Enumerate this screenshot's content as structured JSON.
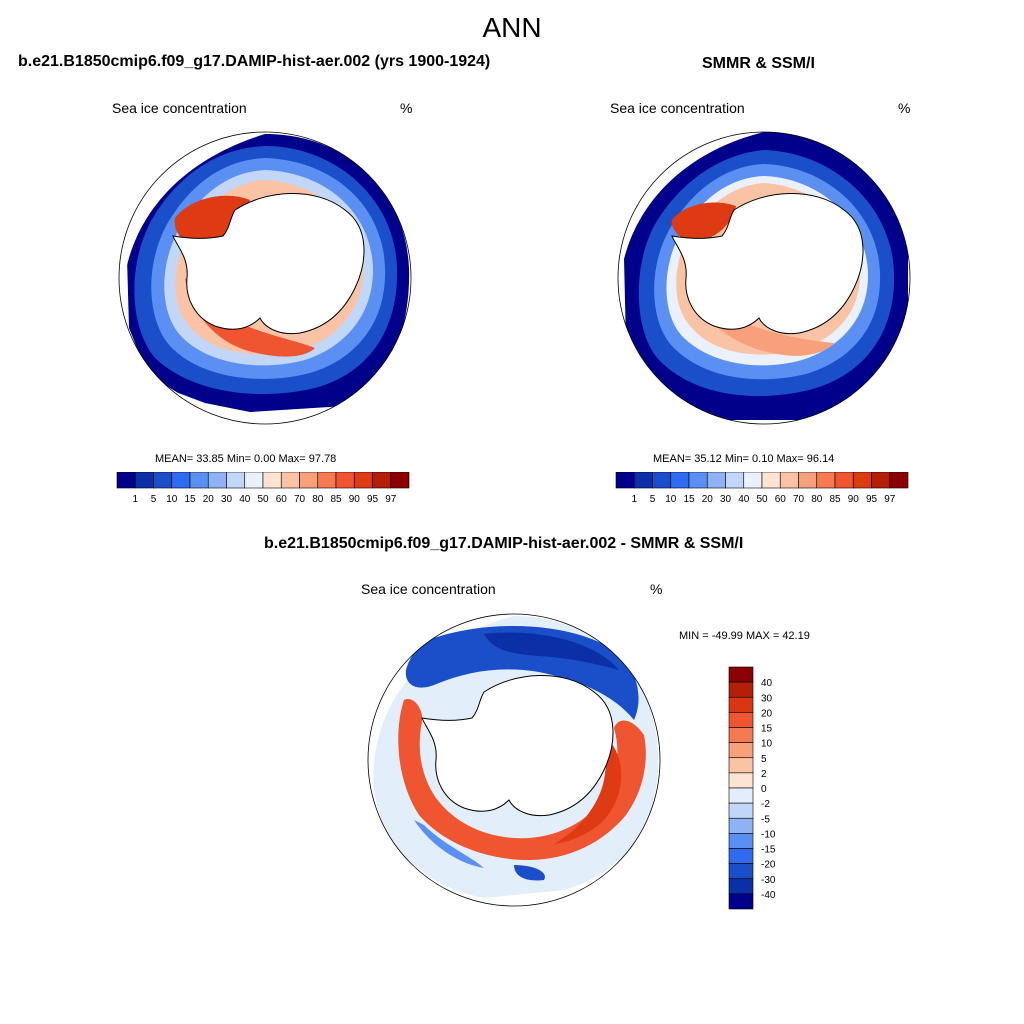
{
  "figure": {
    "title": "ANN",
    "colors": {
      "ocean_bg": "#ffffff",
      "land": "#ffffff",
      "coast": "#000000"
    }
  },
  "panels": [
    {
      "id": "model",
      "title": "b.e21.B1850cmip6.f09_g17.DAMIP-hist-aer.002 (yrs 1900-1924)",
      "variable": "Sea ice concentration",
      "units": "%",
      "stats": {
        "mean": "33.85",
        "min": "0.00",
        "max": "97.78"
      },
      "stats_text": "MEAN=  33.85  Min=    0.00  Max=  97.78"
    },
    {
      "id": "obs",
      "title": "SMMR & SSM/I",
      "variable": "Sea ice concentration",
      "units": "%",
      "stats": {
        "mean": "35.12",
        "min": "0.10",
        "max": "96.14"
      },
      "stats_text": "MEAN=  35.12  Min=    0.10  Max=  96.14"
    },
    {
      "id": "diff",
      "title": "b.e21.B1850cmip6.f09_g17.DAMIP-hist-aer.002 - SMMR & SSM/I",
      "variable": "Sea ice concentration",
      "units": "%",
      "stats": {
        "min": "-49.99",
        "max": "42.19"
      },
      "stats_text": "MIN = -49.99 MAX =  42.19"
    }
  ],
  "colorbar_conc": {
    "labels": [
      "1",
      "5",
      "10",
      "15",
      "20",
      "30",
      "40",
      "50",
      "60",
      "70",
      "80",
      "85",
      "90",
      "95",
      "97"
    ],
    "colors": [
      "#00008b",
      "#0b2fa6",
      "#1a4fc9",
      "#2f6af0",
      "#5b8ff2",
      "#8fb2f5",
      "#c2d6f8",
      "#eaf1fb",
      "#fde3d3",
      "#fbc3a6",
      "#f7a07b",
      "#f47a53",
      "#ee5530",
      "#de3a14",
      "#b51f08",
      "#8b0000"
    ]
  },
  "colorbar_diff": {
    "labels": [
      "40",
      "30",
      "20",
      "15",
      "10",
      "5",
      "2",
      "0",
      "-2",
      "-5",
      "-10",
      "-15",
      "-20",
      "-30",
      "-40"
    ],
    "colors": [
      "#8b0000",
      "#b51f08",
      "#d93712",
      "#ee5530",
      "#f47a53",
      "#f7a07b",
      "#fbc3a6",
      "#fde3d3",
      "#e3eefb",
      "#c2d6f8",
      "#8fb2f5",
      "#5b8ff2",
      "#2f6af0",
      "#1a4fc9",
      "#0b2fa6",
      "#00008b"
    ]
  }
}
